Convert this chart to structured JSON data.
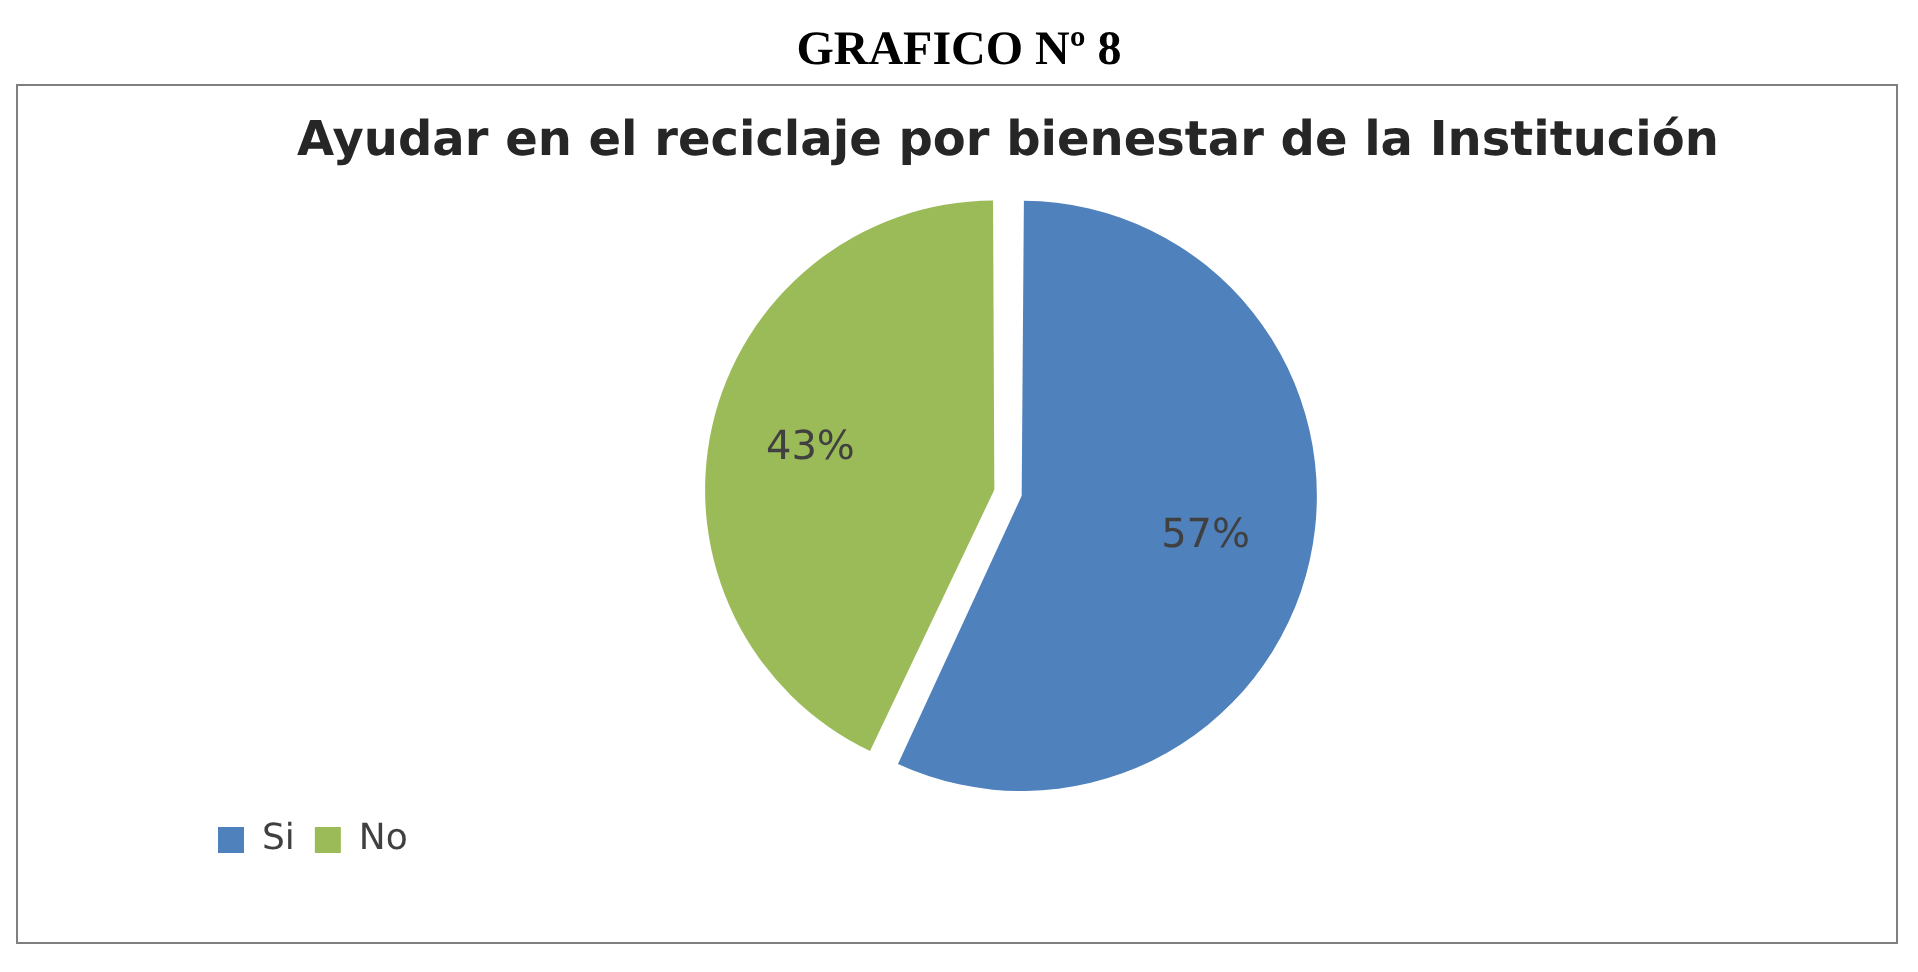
{
  "chart_data": {
    "type": "pie",
    "title": "GRAFICO Nº 8",
    "subtitle": "Ayudar en el reciclaje por bienestar de la Institución",
    "categories": [
      "Si",
      "No"
    ],
    "values": [
      57,
      43
    ],
    "colors": [
      "#4f81bd",
      "#9bbb59"
    ],
    "value_labels": [
      "57%",
      "43%"
    ],
    "legend": "bottom left"
  }
}
